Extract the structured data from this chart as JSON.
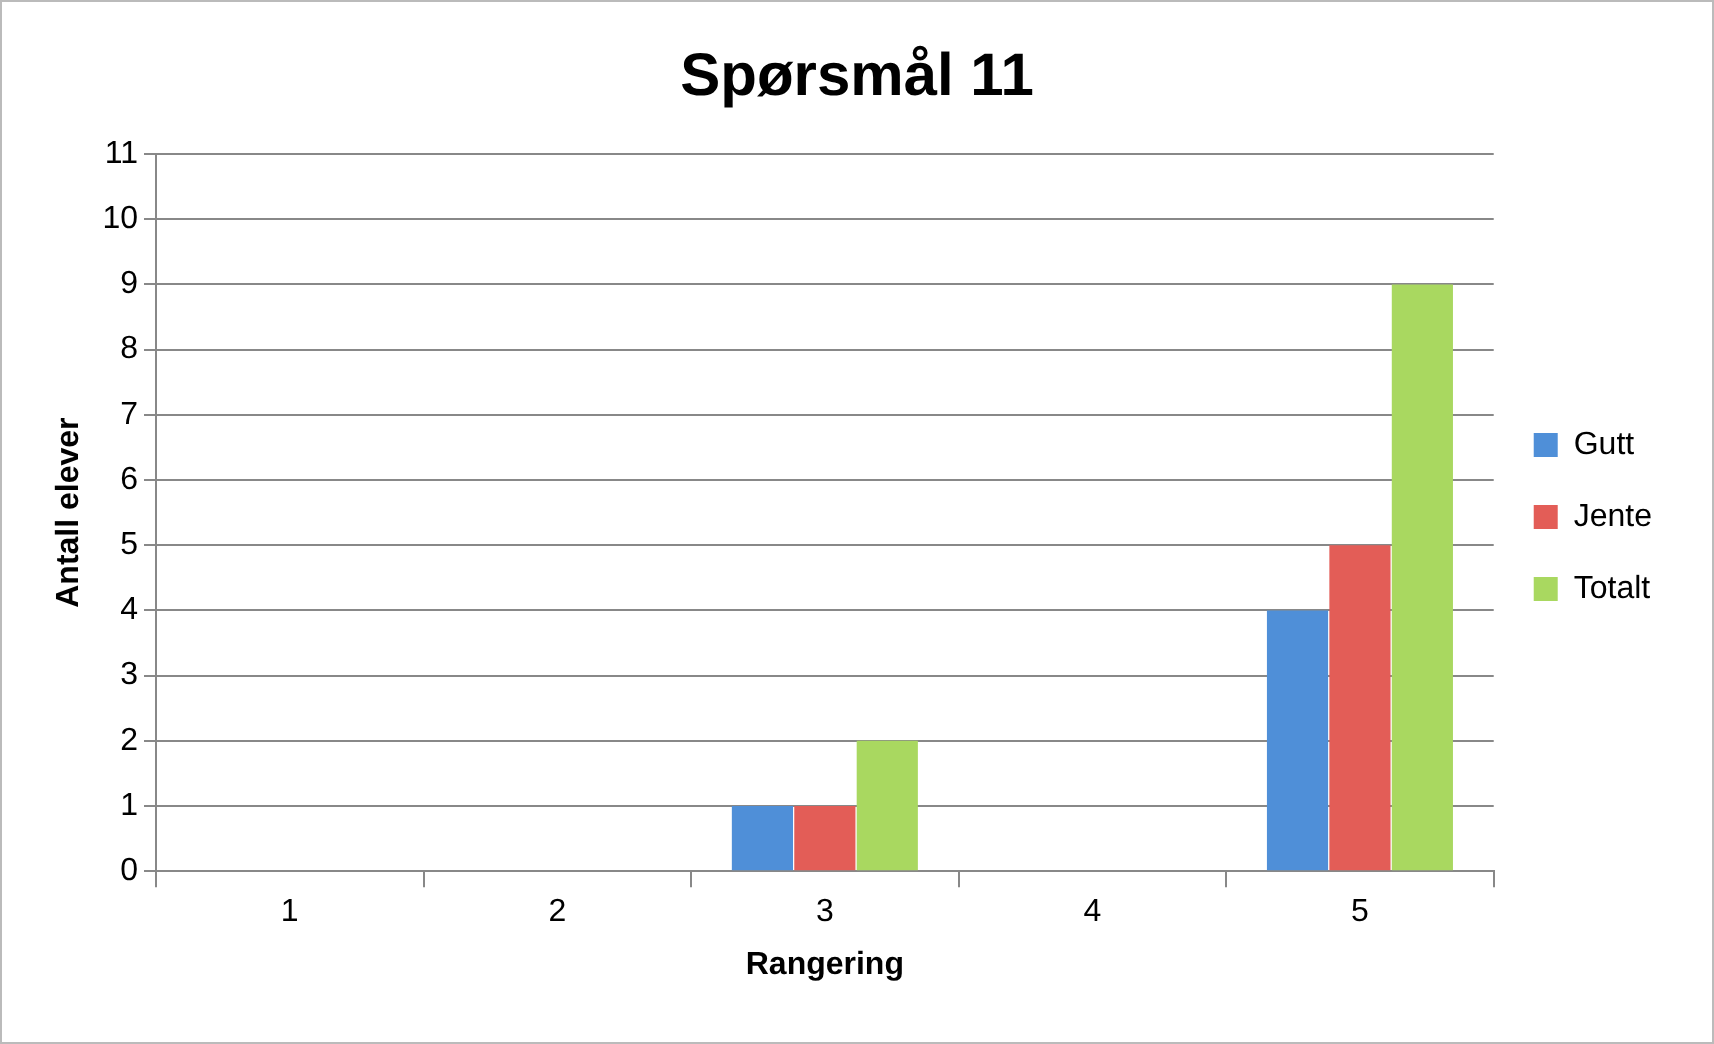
{
  "chart_data": {
    "type": "bar",
    "title": "Spørsmål 11",
    "xlabel": "Rangering",
    "ylabel": "Antall elever",
    "categories": [
      "1",
      "2",
      "3",
      "4",
      "5"
    ],
    "series": [
      {
        "name": "Gutt",
        "color": "#4f8fd8",
        "values": [
          0,
          0,
          1,
          0,
          4
        ]
      },
      {
        "name": "Jente",
        "color": "#e35d57",
        "values": [
          0,
          0,
          1,
          0,
          5
        ]
      },
      {
        "name": "Totalt",
        "color": "#a9d860",
        "values": [
          0,
          0,
          2,
          0,
          9
        ]
      }
    ],
    "ylim": [
      0,
      11
    ],
    "yticks": [
      0,
      1,
      2,
      3,
      4,
      5,
      6,
      7,
      8,
      9,
      10,
      11
    ],
    "grid": "y",
    "legend": "right"
  }
}
